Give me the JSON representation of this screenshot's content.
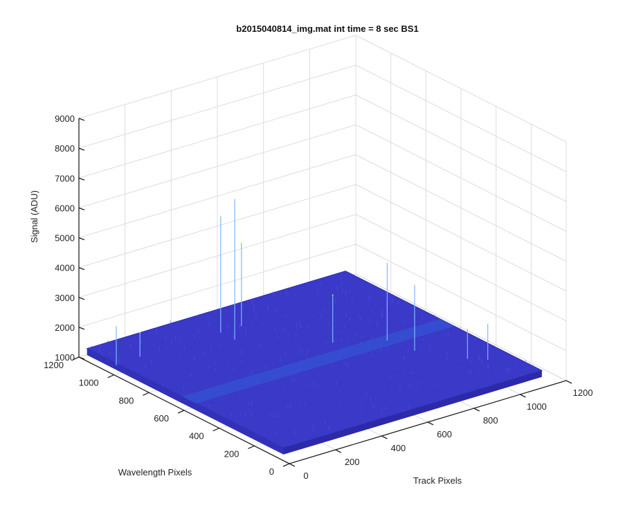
{
  "chart_data": {
    "type": "surface",
    "title": "b2015040814_img.mat int time = 8 sec   BS1",
    "xlabel": "Track Pixels",
    "ylabel": "Wavelength Pixels",
    "zlabel": "Signal (ADU)",
    "xlim": [
      0,
      1200
    ],
    "ylim": [
      0,
      1200
    ],
    "zlim": [
      1000,
      9000
    ],
    "x_ticks": [
      "0",
      "200",
      "400",
      "600",
      "800",
      "1000",
      "1200"
    ],
    "y_ticks": [
      "0",
      "200",
      "400",
      "600",
      "800",
      "1000",
      "1200"
    ],
    "z_ticks": [
      "1000",
      "2000",
      "3000",
      "4000",
      "5000",
      "6000",
      "7000",
      "8000",
      "9000"
    ],
    "grid": true,
    "colormap": "parula",
    "surface_color": "#3a39c8",
    "surface_highlight": "#2f6fe0",
    "baseline_signal": 1300,
    "spikes": [
      {
        "x": 10,
        "y": 1000,
        "z": 2600
      },
      {
        "x": 120,
        "y": 1010,
        "z": 2100
      },
      {
        "x": 470,
        "y": 930,
        "z": 6000
      },
      {
        "x": 470,
        "y": 1010,
        "z": 5200
      },
      {
        "x": 560,
        "y": 1010,
        "z": 4100
      },
      {
        "x": 720,
        "y": 700,
        "z": 2900
      },
      {
        "x": 880,
        "y": 600,
        "z": 3900
      },
      {
        "x": 900,
        "y": 470,
        "z": 3500
      },
      {
        "x": 1050,
        "y": 250,
        "z": 2500
      },
      {
        "x": 1000,
        "y": 300,
        "z": 2300
      }
    ]
  }
}
